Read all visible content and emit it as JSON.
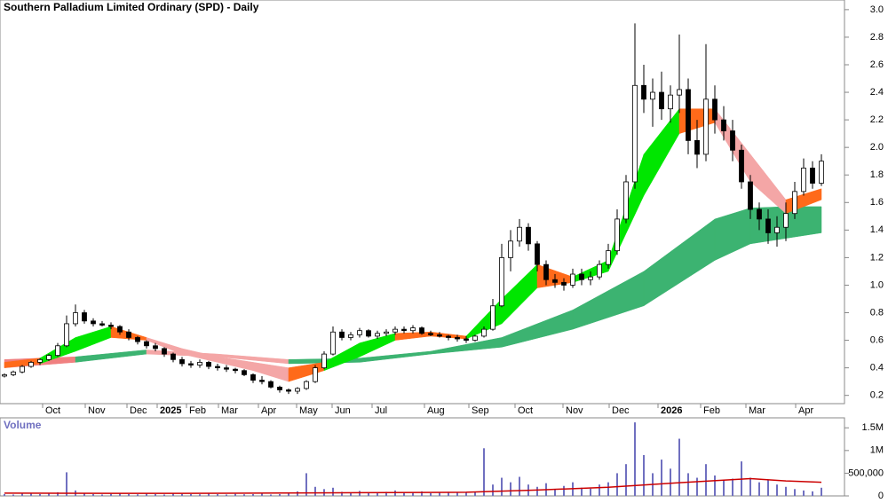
{
  "chart_data": {
    "type": "candlestick",
    "title": "Southern Palladium Limited Ordinary (SPD) - Daily",
    "xlim": [
      -0.5,
      94.6
    ],
    "ylim": [
      0.14,
      3.07
    ],
    "grid": false,
    "yticks": [
      0.2,
      0.4,
      0.6,
      0.8,
      {
        "value": 1,
        "label": "1.0"
      },
      1.2,
      1.4,
      1.6,
      1.8,
      {
        "value": 2,
        "label": "2.0"
      },
      2.2,
      2.4,
      2.6,
      2.8,
      {
        "value": 3,
        "label": "3.0"
      }
    ],
    "xticks": [
      {
        "value": 4.3,
        "label": "Oct"
      },
      {
        "value": 9.1,
        "label": "Nov"
      },
      {
        "value": 13.8,
        "label": "Dec"
      },
      {
        "value": 17.2,
        "label": "2025"
      },
      {
        "value": 20.5,
        "label": "Feb"
      },
      {
        "value": 24.1,
        "label": "Mar"
      },
      {
        "value": 28.6,
        "label": "Apr"
      },
      {
        "value": 32.9,
        "label": "May"
      },
      {
        "value": 36.9,
        "label": "Jun"
      },
      {
        "value": 41.4,
        "label": "Jul"
      },
      {
        "value": 47.3,
        "label": "Aug"
      },
      {
        "value": 52.3,
        "label": "Sep"
      },
      {
        "value": 57.5,
        "label": "Oct"
      },
      {
        "value": 62.9,
        "label": "Nov"
      },
      {
        "value": 68.1,
        "label": "Dec"
      },
      {
        "value": 73.6,
        "label": "2026"
      },
      {
        "value": 78.4,
        "label": "Feb"
      },
      {
        "value": 83.5,
        "label": "Mar"
      },
      {
        "value": 89.1,
        "label": "Apr"
      }
    ],
    "up_color": "#ffffff",
    "down_color": "#000000",
    "wick_color": "#000000",
    "candles": [
      [
        0.34,
        0.36,
        0.33,
        0.35
      ],
      [
        0.35,
        0.38,
        0.34,
        0.37
      ],
      [
        0.37,
        0.42,
        0.36,
        0.41
      ],
      [
        0.41,
        0.45,
        0.4,
        0.44
      ],
      [
        0.44,
        0.47,
        0.42,
        0.46
      ],
      [
        0.46,
        0.5,
        0.45,
        0.49
      ],
      [
        0.49,
        0.58,
        0.48,
        0.56
      ],
      [
        0.56,
        0.78,
        0.55,
        0.72
      ],
      [
        0.72,
        0.86,
        0.7,
        0.8
      ],
      [
        0.8,
        0.82,
        0.72,
        0.74
      ],
      [
        0.74,
        0.76,
        0.7,
        0.72
      ],
      [
        0.72,
        0.74,
        0.7,
        0.71
      ],
      [
        0.71,
        0.73,
        0.68,
        0.7
      ],
      [
        0.7,
        0.71,
        0.64,
        0.66
      ],
      [
        0.66,
        0.68,
        0.6,
        0.62
      ],
      [
        0.62,
        0.63,
        0.57,
        0.59
      ],
      [
        0.59,
        0.6,
        0.54,
        0.56
      ],
      [
        0.56,
        0.58,
        0.52,
        0.54
      ],
      [
        0.54,
        0.55,
        0.48,
        0.5
      ],
      [
        0.5,
        0.51,
        0.44,
        0.46
      ],
      [
        0.46,
        0.48,
        0.41,
        0.43
      ],
      [
        0.43,
        0.45,
        0.4,
        0.42
      ],
      [
        0.42,
        0.46,
        0.4,
        0.44
      ],
      [
        0.44,
        0.45,
        0.39,
        0.41
      ],
      [
        0.41,
        0.43,
        0.38,
        0.4
      ],
      [
        0.4,
        0.42,
        0.37,
        0.39
      ],
      [
        0.39,
        0.4,
        0.36,
        0.38
      ],
      [
        0.38,
        0.39,
        0.34,
        0.35
      ],
      [
        0.35,
        0.36,
        0.29,
        0.31
      ],
      [
        0.31,
        0.34,
        0.28,
        0.3
      ],
      [
        0.3,
        0.31,
        0.25,
        0.26
      ],
      [
        0.26,
        0.27,
        0.22,
        0.24
      ],
      [
        0.24,
        0.25,
        0.21,
        0.23
      ],
      [
        0.23,
        0.26,
        0.21,
        0.25
      ],
      [
        0.25,
        0.31,
        0.24,
        0.3
      ],
      [
        0.3,
        0.42,
        0.29,
        0.4
      ],
      [
        0.4,
        0.52,
        0.39,
        0.5
      ],
      [
        0.5,
        0.7,
        0.49,
        0.66
      ],
      [
        0.66,
        0.68,
        0.6,
        0.62
      ],
      [
        0.62,
        0.66,
        0.6,
        0.64
      ],
      [
        0.64,
        0.69,
        0.62,
        0.67
      ],
      [
        0.67,
        0.68,
        0.62,
        0.63
      ],
      [
        0.63,
        0.67,
        0.61,
        0.65
      ],
      [
        0.65,
        0.68,
        0.63,
        0.66
      ],
      [
        0.66,
        0.7,
        0.64,
        0.68
      ],
      [
        0.68,
        0.7,
        0.65,
        0.67
      ],
      [
        0.67,
        0.71,
        0.65,
        0.69
      ],
      [
        0.69,
        0.7,
        0.64,
        0.65
      ],
      [
        0.65,
        0.67,
        0.63,
        0.64
      ],
      [
        0.64,
        0.66,
        0.62,
        0.63
      ],
      [
        0.63,
        0.64,
        0.6,
        0.62
      ],
      [
        0.62,
        0.64,
        0.59,
        0.61
      ],
      [
        0.61,
        0.63,
        0.58,
        0.6
      ],
      [
        0.6,
        0.64,
        0.59,
        0.63
      ],
      [
        0.63,
        0.7,
        0.62,
        0.68
      ],
      [
        0.68,
        0.9,
        0.67,
        0.85
      ],
      [
        0.85,
        1.3,
        0.84,
        1.2
      ],
      [
        1.2,
        1.4,
        1.1,
        1.32
      ],
      [
        1.32,
        1.48,
        1.28,
        1.42
      ],
      [
        1.42,
        1.45,
        1.25,
        1.3
      ],
      [
        1.3,
        1.32,
        1.1,
        1.15
      ],
      [
        1.15,
        1.18,
        1.0,
        1.04
      ],
      [
        1.04,
        1.08,
        0.98,
        1.02
      ],
      [
        1.02,
        1.05,
        0.96,
        1.0
      ],
      [
        1.0,
        1.12,
        0.98,
        1.08
      ],
      [
        1.08,
        1.12,
        1.0,
        1.04
      ],
      [
        1.04,
        1.1,
        1.0,
        1.06
      ],
      [
        1.06,
        1.18,
        1.04,
        1.15
      ],
      [
        1.15,
        1.3,
        1.12,
        1.25
      ],
      [
        1.25,
        1.55,
        1.22,
        1.48
      ],
      [
        1.48,
        1.8,
        1.45,
        1.75
      ],
      [
        1.75,
        2.9,
        1.7,
        2.45
      ],
      [
        2.45,
        2.6,
        2.25,
        2.35
      ],
      [
        2.35,
        2.5,
        2.15,
        2.4
      ],
      [
        2.4,
        2.55,
        2.2,
        2.28
      ],
      [
        2.28,
        2.45,
        2.18,
        2.38
      ],
      [
        2.38,
        2.82,
        2.25,
        2.42
      ],
      [
        2.42,
        2.5,
        1.95,
        2.05
      ],
      [
        2.05,
        2.2,
        1.85,
        1.95
      ],
      [
        1.95,
        2.75,
        1.9,
        2.35
      ],
      [
        2.35,
        2.45,
        2.1,
        2.2
      ],
      [
        2.2,
        2.3,
        2.05,
        2.12
      ],
      [
        2.12,
        2.2,
        1.9,
        1.98
      ],
      [
        1.98,
        2.02,
        1.7,
        1.75
      ],
      [
        1.75,
        1.8,
        1.48,
        1.55
      ],
      [
        1.55,
        1.6,
        1.4,
        1.48
      ],
      [
        1.48,
        1.55,
        1.3,
        1.38
      ],
      [
        1.38,
        1.5,
        1.28,
        1.42
      ],
      [
        1.42,
        1.6,
        1.32,
        1.52
      ],
      [
        1.52,
        1.75,
        1.48,
        1.68
      ],
      [
        1.68,
        1.92,
        1.65,
        1.85
      ],
      [
        1.85,
        1.9,
        1.7,
        1.74
      ],
      [
        1.74,
        1.95,
        1.72,
        1.9
      ]
    ],
    "ribbons": [
      {
        "x": [
          0,
          8,
          16,
          24,
          32,
          40,
          48,
          56,
          64,
          72,
          80,
          84,
          88,
          92
        ],
        "upper": [
          0.46,
          0.48,
          0.53,
          0.5,
          0.46,
          0.47,
          0.52,
          0.62,
          0.82,
          1.1,
          1.48,
          1.56,
          1.57,
          1.57
        ],
        "lower": [
          0.4,
          0.44,
          0.5,
          0.48,
          0.43,
          0.44,
          0.5,
          0.55,
          0.68,
          0.85,
          1.18,
          1.3,
          1.34,
          1.38
        ],
        "segment_colors": [
          "#f08080",
          "#3cb371",
          "#f4a6a6",
          "#f4a6a6",
          "#3cb371",
          "#3cb371",
          "#3cb371",
          "#3cb371",
          "#3cb371",
          "#3cb371",
          "#3cb371",
          "#3cb371",
          "#3cb371"
        ]
      },
      {
        "x": [
          0,
          4,
          8,
          12,
          16,
          20,
          24,
          28,
          32,
          36,
          40,
          44,
          48,
          52,
          56,
          60,
          64,
          68,
          72,
          76,
          80,
          84,
          88,
          92
        ],
        "upper": [
          0.44,
          0.47,
          0.62,
          0.7,
          0.62,
          0.54,
          0.48,
          0.44,
          0.4,
          0.44,
          0.58,
          0.65,
          0.66,
          0.63,
          0.9,
          1.15,
          1.06,
          1.18,
          1.95,
          2.28,
          2.28,
          1.95,
          1.62,
          1.7
        ],
        "lower": [
          0.4,
          0.43,
          0.52,
          0.62,
          0.6,
          0.5,
          0.44,
          0.38,
          0.3,
          0.38,
          0.48,
          0.6,
          0.63,
          0.61,
          0.72,
          0.98,
          1.02,
          1.1,
          1.65,
          2.1,
          2.18,
          1.75,
          1.52,
          1.62
        ],
        "segment_colors": [
          "#ff6a1a",
          "#00e600",
          "#00e600",
          "#ff6a1a",
          "#f4a6a6",
          "#f4a6a6",
          "#f4a6a6",
          "#f4a6a6",
          "#ff6a1a",
          "#00e600",
          "#00e600",
          "#ff6a1a",
          "#ff6a1a",
          "#00e600",
          "#00e600",
          "#ff6a1a",
          "#00e600",
          "#00e600",
          "#00e600",
          "#ff6a1a",
          "#f4a6a6",
          "#f4a6a6",
          "#ff6a1a"
        ]
      }
    ],
    "volume": {
      "title": "Volume",
      "color": "#7070c0",
      "ylim": [
        0,
        1720000
      ],
      "yticks": [
        0,
        {
          "value": 500000,
          "label": "500,000"
        },
        {
          "value": 1000000,
          "label": "1M"
        },
        {
          "value": 1500000,
          "label": "1.5M"
        }
      ],
      "values": [
        40000,
        30000,
        50000,
        60000,
        40000,
        50000,
        80000,
        520000,
        120000,
        50000,
        40000,
        30000,
        45000,
        50000,
        40000,
        35000,
        60000,
        40000,
        30000,
        50000,
        45000,
        40000,
        35000,
        50000,
        40000,
        30000,
        45000,
        35000,
        40000,
        50000,
        30000,
        40000,
        60000,
        100000,
        500000,
        200000,
        150000,
        180000,
        90000,
        70000,
        110000,
        80000,
        60000,
        90000,
        120000,
        70000,
        80000,
        100000,
        60000,
        70000,
        90000,
        80000,
        70000,
        80000,
        1050000,
        250000,
        400000,
        300000,
        420000,
        250000,
        200000,
        280000,
        150000,
        220000,
        300000,
        180000,
        160000,
        250000,
        300000,
        500000,
        700000,
        1620000,
        900000,
        500000,
        800000,
        600000,
        1260000,
        500000,
        400000,
        700000,
        450000,
        350000,
        380000,
        760000,
        400000,
        300000,
        350000,
        250000,
        200000,
        150000,
        120000,
        100000,
        180000
      ],
      "ma": {
        "color": "#cc0000",
        "x": [
          0,
          20,
          40,
          52,
          60,
          68,
          76,
          84,
          88,
          92
        ],
        "values": [
          60000,
          55000,
          70000,
          80000,
          130000,
          190000,
          290000,
          380000,
          330000,
          300000
        ]
      }
    }
  }
}
